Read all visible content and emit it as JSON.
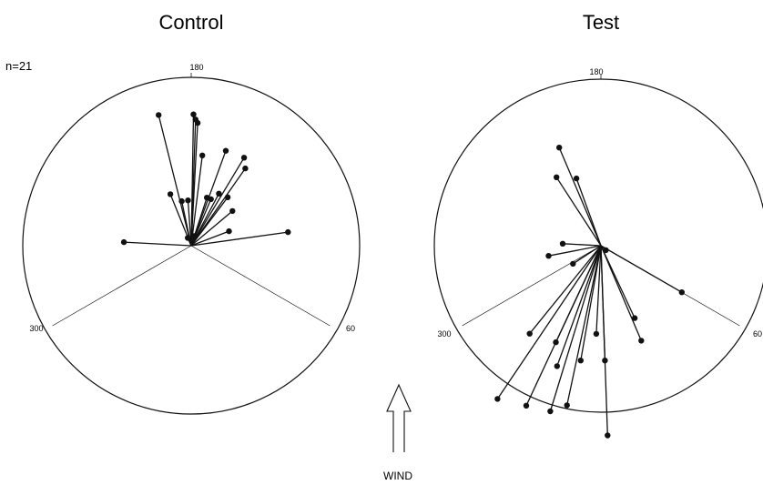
{
  "chart_data": [
    {
      "type": "scatter",
      "title": "Control",
      "annotation": "n=21",
      "axis": "circular, 0–360 degrees",
      "tick_labels": [
        "180",
        "300",
        "60"
      ],
      "reference_lines": [
        60,
        300
      ],
      "points": [
        {
          "angle": 183,
          "r": 0.73
        },
        {
          "angle": 181,
          "r": 0.78
        },
        {
          "angle": 182,
          "r": 0.75
        },
        {
          "angle": 166,
          "r": 0.8
        },
        {
          "angle": 200,
          "r": 0.6
        },
        {
          "angle": 211,
          "r": 0.61
        },
        {
          "angle": 187,
          "r": 0.54
        },
        {
          "angle": 215,
          "r": 0.56
        },
        {
          "angle": 208,
          "r": 0.35
        },
        {
          "angle": 198,
          "r": 0.3
        },
        {
          "angle": 203,
          "r": 0.3
        },
        {
          "angle": 217,
          "r": 0.36
        },
        {
          "angle": 158,
          "r": 0.33
        },
        {
          "angle": 168,
          "r": 0.27
        },
        {
          "angle": 176,
          "r": 0.27
        },
        {
          "angle": 230,
          "r": 0.32
        },
        {
          "angle": 249,
          "r": 0.24
        },
        {
          "angle": 262,
          "r": 0.58
        },
        {
          "angle": 93,
          "r": 0.4
        },
        {
          "angle": 197,
          "r": 0.06
        },
        {
          "angle": 156,
          "r": 0.05
        }
      ]
    },
    {
      "type": "scatter",
      "title": "Test",
      "axis": "circular, 0–360 degrees",
      "tick_labels": [
        "180",
        "300",
        "60"
      ],
      "reference_lines": [
        60,
        300
      ],
      "points": [
        {
          "angle": 157,
          "r": 0.64
        },
        {
          "angle": 160,
          "r": 0.43
        },
        {
          "angle": 147,
          "r": 0.49
        },
        {
          "angle": 93,
          "r": 0.23
        },
        {
          "angle": 57,
          "r": 0.2
        },
        {
          "angle": 312,
          "r": 0.04
        },
        {
          "angle": 79,
          "r": 0.32
        },
        {
          "angle": 39,
          "r": 0.68
        },
        {
          "angle": 20,
          "r": 0.77
        },
        {
          "angle": 12,
          "r": 0.98
        },
        {
          "angle": 358,
          "r": 1.14
        },
        {
          "angle": 34,
          "r": 1.11
        },
        {
          "angle": 17,
          "r": 1.04
        },
        {
          "angle": 25,
          "r": 1.06
        },
        {
          "angle": 10,
          "r": 0.7
        },
        {
          "angle": 3,
          "r": 0.53
        },
        {
          "angle": 25,
          "r": 0.64
        },
        {
          "angle": 358,
          "r": 0.69
        },
        {
          "angle": 337,
          "r": 0.62
        },
        {
          "angle": 335,
          "r": 0.48
        },
        {
          "angle": 300,
          "r": 0.56
        }
      ]
    }
  ],
  "wind_label": "WIND"
}
